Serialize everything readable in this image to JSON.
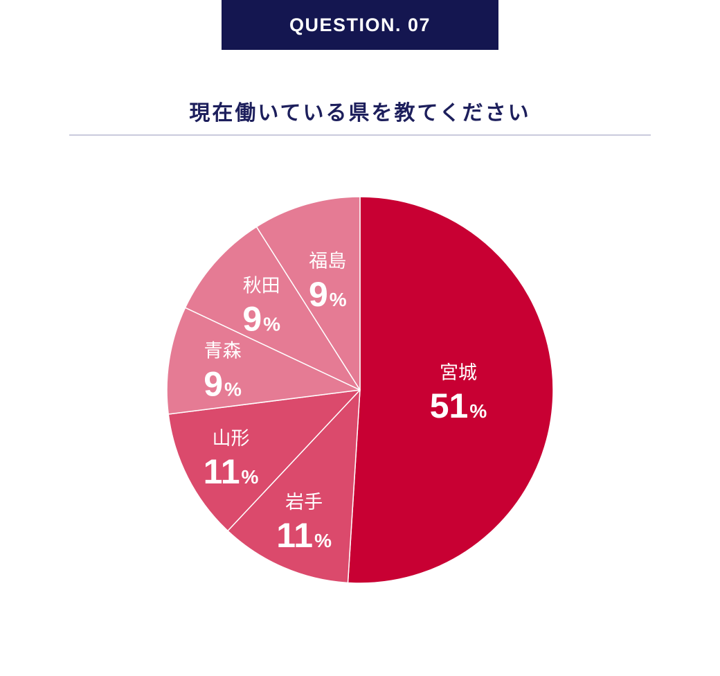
{
  "header": {
    "badge": "QUESTION. 07",
    "question": "現在働いている県を教てください"
  },
  "colors": {
    "badge_bg": "#141650",
    "question_text": "#1d1f5c",
    "divider": "#c9cadc"
  },
  "chart_data": {
    "type": "pie",
    "title": "現在働いている県を教てください",
    "slices": [
      {
        "label": "宮城",
        "value": 51,
        "display": "51",
        "unit": "%",
        "color": "#c80033"
      },
      {
        "label": "岩手",
        "value": 11,
        "display": "11",
        "unit": "%",
        "color": "#db4a6c"
      },
      {
        "label": "山形",
        "value": 11,
        "display": "11",
        "unit": "%",
        "color": "#db4a6c"
      },
      {
        "label": "青森",
        "value": 9,
        "display": "9",
        "unit": "%",
        "color": "#e57b94"
      },
      {
        "label": "秋田",
        "value": 9,
        "display": "9",
        "unit": "%",
        "color": "#e57b94"
      },
      {
        "label": "福島",
        "value": 9,
        "display": "9",
        "unit": "%",
        "color": "#e57b94"
      }
    ],
    "start": "12 o'clock",
    "direction": "clockwise",
    "legend": "none",
    "labels": "inside slices"
  }
}
